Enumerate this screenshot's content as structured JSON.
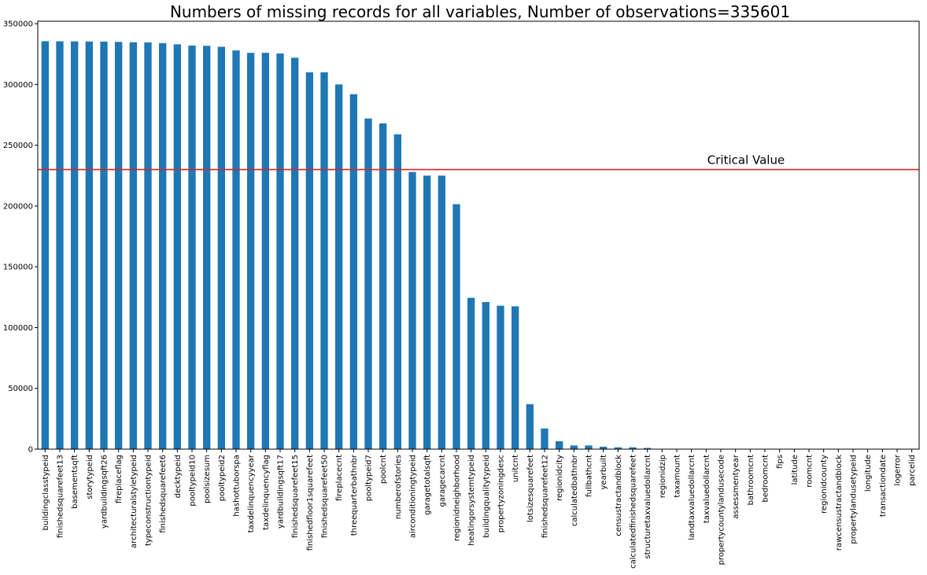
{
  "chart_data": {
    "type": "bar",
    "title": "Numbers of missing records for all variables, Number of observations=335601",
    "xlabel": "",
    "ylabel": "",
    "ylim": [
      0,
      352000
    ],
    "yticks": [
      0,
      50000,
      100000,
      150000,
      200000,
      250000,
      300000,
      350000
    ],
    "grid": false,
    "color": "#1f77b4",
    "categories": [
      "buildingclasstypeid",
      "finishedsquarefeet13",
      "basementsqft",
      "storytypeid",
      "yardbuildingsqft26",
      "fireplaceflag",
      "architecturalstyletypeid",
      "typeconstructiontypeid",
      "finishedsquarefeet6",
      "decktypeid",
      "pooltypeid10",
      "poolsizesum",
      "pooltypeid2",
      "hashottuborspa",
      "taxdelinquencyyear",
      "taxdelinquencyflag",
      "yardbuildingsqft17",
      "finishedsquarefeet15",
      "finishedfloor1squarefeet",
      "finishedsquarefeet50",
      "fireplacecnt",
      "threequarterbathnbr",
      "pooltypeid7",
      "poolcnt",
      "numberofstories",
      "airconditioningtypeid",
      "garagetotalsqft",
      "garagecarcnt",
      "regionidneighborhood",
      "heatingorsystemtypeid",
      "buildingqualitytypeid",
      "propertyzoningdesc",
      "unitcnt",
      "lotsizesquarefeet",
      "finishedsquarefeet12",
      "regionidcity",
      "calculatedbathnbr",
      "fullbathcnt",
      "yearbuilt",
      "censustractandblock",
      "calculatedfinishedsquarefeet",
      "structuretaxvaluedollarcnt",
      "regionidzip",
      "taxamount",
      "landtaxvaluedollarcnt",
      "taxvaluedollarcnt",
      "propertycountylandusecode",
      "assessmentyear",
      "bathroomcnt",
      "bedroomcnt",
      "fips",
      "latitude",
      "roomcnt",
      "regionidcounty",
      "rawcensustractandblock",
      "propertylandusetypeid",
      "longitude",
      "transactiondate",
      "logerror",
      "parcelid"
    ],
    "values": [
      335540,
      335500,
      335400,
      335300,
      335250,
      335000,
      334700,
      334600,
      334000,
      333000,
      332000,
      331800,
      331000,
      328000,
      326000,
      326000,
      325500,
      322000,
      310000,
      310000,
      300000,
      292000,
      272000,
      268000,
      259000,
      228000,
      225000,
      225000,
      201500,
      124500,
      121000,
      118000,
      117500,
      37000,
      17000,
      6500,
      3000,
      3000,
      2000,
      1500,
      1500,
      1000,
      200,
      100,
      50,
      30,
      20,
      10,
      5,
      5,
      5,
      5,
      5,
      5,
      5,
      5,
      5,
      0,
      0,
      0
    ],
    "critical_value": {
      "label": "Critical Value",
      "y": 230000,
      "color": "#d62728"
    }
  }
}
